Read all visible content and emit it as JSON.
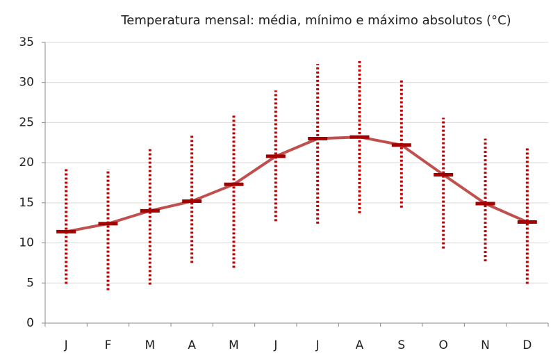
{
  "chart_data": {
    "type": "line-range",
    "title": "Temperatura mensal: média, mínimo e máximo absolutos (°C)",
    "categories": [
      "J",
      "F",
      "M",
      "A",
      "M",
      "J",
      "J",
      "A",
      "S",
      "O",
      "N",
      "D"
    ],
    "mean": {
      "color": "#c0504d",
      "marker_color": "#a50000",
      "values": [
        11.4,
        12.4,
        14.0,
        15.2,
        17.3,
        20.8,
        23.0,
        23.2,
        22.2,
        18.5,
        14.9,
        12.6
      ]
    },
    "max": {
      "color": "#c00000",
      "values": [
        19.2,
        19.2,
        21.9,
        23.6,
        26.1,
        29.0,
        32.3,
        32.7,
        30.3,
        25.6,
        23.0,
        21.9
      ]
    },
    "min": {
      "color": "#c00000",
      "values": [
        4.9,
        4.1,
        4.8,
        7.5,
        6.9,
        12.7,
        12.4,
        13.7,
        14.4,
        9.3,
        7.7,
        4.9
      ]
    },
    "ylim": [
      0,
      35
    ],
    "yticks": [
      0,
      5,
      10,
      15,
      20,
      25,
      30,
      35
    ],
    "grid": true
  }
}
